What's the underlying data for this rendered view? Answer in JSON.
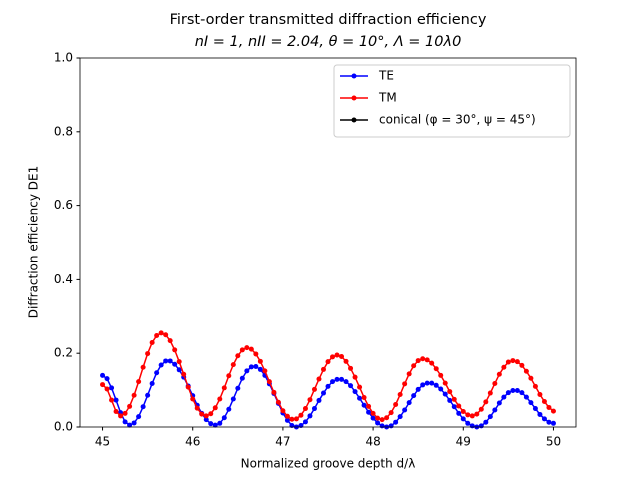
{
  "chart_data": {
    "type": "line",
    "title": "First-order transmitted diffraction efficiency",
    "subtitle": "nI = 1, nII = 2.04, θ = 10°, Λ =  10λ0",
    "x_label": "Normalized groove depth d/λ",
    "y_label": "Diffraction efficiency DE1",
    "x": [
      45,
      45.05,
      45.1,
      45.15,
      45.2,
      45.25,
      45.3,
      45.35,
      45.4,
      45.45,
      45.5,
      45.55,
      45.6,
      45.65,
      45.7,
      45.75,
      45.8,
      45.85,
      45.9,
      45.95,
      46,
      46.05,
      46.1,
      46.15,
      46.2,
      46.25,
      46.3,
      46.35,
      46.4,
      46.45,
      46.5,
      46.55,
      46.6,
      46.65,
      46.7,
      46.75,
      46.8,
      46.85,
      46.9,
      46.95,
      47,
      47.05,
      47.1,
      47.15,
      47.2,
      47.25,
      47.3,
      47.35,
      47.4,
      47.45,
      47.5,
      47.55,
      47.6,
      47.65,
      47.7,
      47.75,
      47.8,
      47.85,
      47.9,
      47.95,
      48,
      48.05,
      48.1,
      48.15,
      48.2,
      48.25,
      48.3,
      48.35,
      48.4,
      48.45,
      48.5,
      48.55,
      48.6,
      48.65,
      48.7,
      48.75,
      48.8,
      48.85,
      48.9,
      48.95,
      49,
      49.05,
      49.1,
      49.15,
      49.2,
      49.25,
      49.3,
      49.35,
      49.4,
      49.45,
      49.5,
      49.55,
      49.6,
      49.65,
      49.7,
      49.75,
      49.8,
      49.85,
      49.9,
      49.95,
      50
    ],
    "series": [
      {
        "name": "TE",
        "color": "#0000ff",
        "values": [
          0.14,
          0.131,
          0.106,
          0.073,
          0.039,
          0.014,
          0.005,
          0.011,
          0.028,
          0.055,
          0.086,
          0.118,
          0.147,
          0.168,
          0.179,
          0.179,
          0.17,
          0.155,
          0.135,
          0.111,
          0.085,
          0.059,
          0.037,
          0.02,
          0.009,
          0.005,
          0.01,
          0.025,
          0.048,
          0.076,
          0.105,
          0.132,
          0.152,
          0.163,
          0.164,
          0.156,
          0.14,
          0.117,
          0.091,
          0.064,
          0.038,
          0.018,
          0.004,
          0,
          0.004,
          0.014,
          0.03,
          0.05,
          0.072,
          0.092,
          0.11,
          0.123,
          0.129,
          0.129,
          0.123,
          0.112,
          0.096,
          0.078,
          0.059,
          0.04,
          0.024,
          0.011,
          0.003,
          0,
          0.003,
          0.013,
          0.028,
          0.046,
          0.066,
          0.085,
          0.102,
          0.114,
          0.119,
          0.119,
          0.113,
          0.103,
          0.089,
          0.072,
          0.055,
          0.037,
          0.022,
          0.01,
          0.003,
          0,
          0.003,
          0.013,
          0.028,
          0.046,
          0.065,
          0.081,
          0.093,
          0.099,
          0.099,
          0.093,
          0.081,
          0.066,
          0.05,
          0.034,
          0.022,
          0.013,
          0.01
        ]
      },
      {
        "name": "TM",
        "color": "#ff0000",
        "values": [
          0.115,
          0.103,
          0.073,
          0.042,
          0.03,
          0.037,
          0.056,
          0.086,
          0.123,
          0.162,
          0.199,
          0.229,
          0.248,
          0.255,
          0.25,
          0.234,
          0.209,
          0.177,
          0.143,
          0.108,
          0.076,
          0.051,
          0.035,
          0.03,
          0.036,
          0.052,
          0.076,
          0.106,
          0.139,
          0.169,
          0.193,
          0.209,
          0.215,
          0.211,
          0.198,
          0.178,
          0.152,
          0.123,
          0.094,
          0.067,
          0.044,
          0.029,
          0.021,
          0.022,
          0.032,
          0.05,
          0.074,
          0.102,
          0.13,
          0.156,
          0.177,
          0.19,
          0.195,
          0.191,
          0.178,
          0.159,
          0.135,
          0.108,
          0.08,
          0.056,
          0.037,
          0.024,
          0.02,
          0.025,
          0.039,
          0.061,
          0.088,
          0.117,
          0.144,
          0.166,
          0.18,
          0.185,
          0.182,
          0.173,
          0.158,
          0.14,
          0.119,
          0.096,
          0.075,
          0.057,
          0.042,
          0.033,
          0.03,
          0.035,
          0.048,
          0.068,
          0.092,
          0.118,
          0.143,
          0.162,
          0.176,
          0.18,
          0.177,
          0.167,
          0.151,
          0.132,
          0.11,
          0.088,
          0.069,
          0.053,
          0.043
        ]
      },
      {
        "name": "conical  (φ = 30°, ψ = 45°)",
        "color": "#000000",
        "values": [
          null,
          null,
          null,
          null,
          null,
          null,
          null,
          null,
          null,
          null,
          null,
          null,
          null,
          null,
          null,
          null,
          null,
          null,
          null,
          null,
          null,
          null,
          null,
          null,
          null,
          null,
          null,
          null,
          null,
          null,
          null,
          null,
          null,
          null,
          null,
          null,
          null,
          null,
          null,
          null,
          null,
          null,
          null,
          null,
          null,
          null,
          null,
          null,
          null,
          null,
          null,
          null,
          null,
          null,
          null,
          null,
          null,
          null,
          null,
          null,
          null,
          null,
          null,
          null,
          null,
          null,
          null,
          null,
          null,
          null,
          null,
          null,
          null,
          null,
          null,
          null,
          null,
          null,
          null,
          null,
          null,
          null,
          null,
          null,
          null,
          null,
          null,
          null,
          null,
          null,
          null,
          null,
          null,
          null,
          null,
          null,
          null,
          null,
          null,
          null,
          null
        ]
      }
    ],
    "xlim": [
      44.75,
      50.25
    ],
    "xticks": [
      45,
      46,
      47,
      48,
      49,
      50
    ],
    "ylim": [
      0,
      1
    ],
    "yticks": [
      {
        "value": 0,
        "label": "0.0"
      },
      {
        "value": 0.2,
        "label": "0.2"
      },
      {
        "value": 0.4,
        "label": "0.4"
      },
      {
        "value": 0.6,
        "label": "0.6"
      },
      {
        "value": 0.8,
        "label": "0.8"
      },
      {
        "value": 1,
        "label": "1.0"
      }
    ],
    "grid": false,
    "legend": "upper right"
  }
}
